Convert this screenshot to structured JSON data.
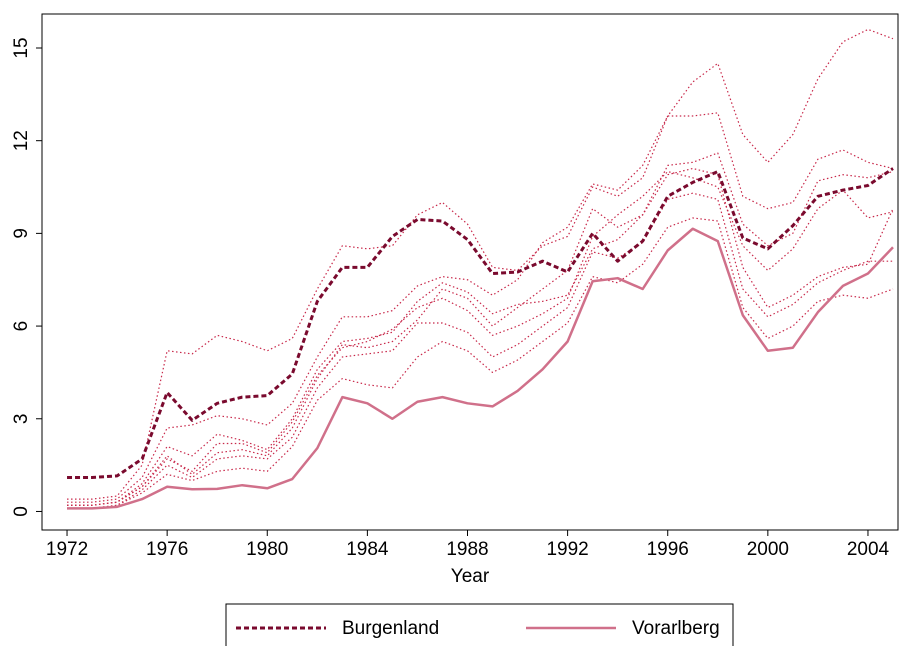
{
  "chart_data": {
    "type": "line",
    "xlabel": "Year",
    "x": [
      1972,
      1973,
      1974,
      1975,
      1976,
      1977,
      1978,
      1979,
      1980,
      1981,
      1982,
      1983,
      1984,
      1985,
      1986,
      1987,
      1988,
      1989,
      1990,
      1991,
      1992,
      1993,
      1994,
      1995,
      1996,
      1997,
      1998,
      1999,
      2000,
      2001,
      2002,
      2003,
      2004,
      2005
    ],
    "xlim": [
      1971,
      2005.2
    ],
    "xticks": [
      1972,
      1976,
      1980,
      1984,
      1988,
      1992,
      1996,
      2000,
      2004
    ],
    "ylim": [
      -0.6,
      16.1
    ],
    "yticks": [
      0,
      3,
      6,
      9,
      12,
      15
    ],
    "series": [
      {
        "color": "#c8284a",
        "dash": "dot",
        "values": [
          0.4,
          0.4,
          0.5,
          1.5,
          5.2,
          5.1,
          5.7,
          5.5,
          5.2,
          5.6,
          7.2,
          8.6,
          8.5,
          8.6,
          9.6,
          10.0,
          9.3,
          7.9,
          7.8,
          8.6,
          8.9,
          10.5,
          10.2,
          10.8,
          12.8,
          13.9,
          14.5,
          12.2,
          11.3,
          12.2,
          14.0,
          15.2,
          15.6,
          15.3
        ]
      },
      {
        "color": "#c8284a",
        "dash": "dot",
        "values": [
          0.3,
          0.3,
          0.4,
          1.1,
          2.7,
          2.8,
          3.1,
          3.0,
          2.8,
          3.5,
          5.0,
          6.3,
          6.3,
          6.5,
          7.3,
          7.6,
          7.5,
          7.0,
          7.5,
          8.7,
          9.2,
          10.6,
          10.4,
          11.2,
          12.8,
          12.8,
          12.9,
          10.2,
          9.8,
          10.0,
          11.4,
          11.7,
          11.3,
          11.1
        ]
      },
      {
        "color": "#c8284a",
        "dash": "dot",
        "values": [
          0.2,
          0.2,
          0.3,
          0.9,
          2.1,
          1.8,
          2.5,
          2.3,
          2.0,
          3.0,
          4.6,
          5.5,
          5.6,
          5.8,
          6.8,
          7.4,
          7.1,
          6.4,
          6.7,
          6.8,
          7.0,
          8.5,
          8.8,
          9.6,
          11.2,
          11.3,
          11.6,
          9.3,
          8.6,
          9.0,
          10.7,
          10.9,
          10.8,
          11.0
        ]
      },
      {
        "color": "#c8284a",
        "dash": "dot",
        "values": [
          0.2,
          0.2,
          0.3,
          0.8,
          1.8,
          1.2,
          1.9,
          2.0,
          1.8,
          2.7,
          4.3,
          5.4,
          5.3,
          5.5,
          6.2,
          7.2,
          6.9,
          6.0,
          6.6,
          7.2,
          7.8,
          9.8,
          9.2,
          9.6,
          10.9,
          11.1,
          10.9,
          7.9,
          6.6,
          7.0,
          7.6,
          7.9,
          8.0,
          9.8
        ]
      },
      {
        "color": "#c8284a",
        "dash": "dot",
        "values": [
          0.2,
          0.2,
          0.3,
          0.8,
          1.7,
          1.3,
          2.2,
          2.2,
          1.9,
          2.9,
          4.4,
          5.3,
          5.5,
          5.9,
          6.6,
          6.9,
          6.5,
          5.7,
          6.0,
          6.4,
          6.9,
          8.9,
          9.6,
          10.2,
          11.0,
          10.8,
          10.5,
          8.6,
          7.8,
          8.5,
          9.8,
          10.4,
          9.5,
          9.7
        ]
      },
      {
        "color": "#c8284a",
        "dash": "dot",
        "values": [
          0.1,
          0.1,
          0.2,
          0.7,
          1.5,
          1.1,
          1.7,
          1.8,
          1.7,
          2.4,
          4.0,
          5.0,
          5.1,
          5.2,
          6.1,
          6.1,
          5.8,
          5.0,
          5.4,
          6.0,
          6.6,
          8.4,
          8.2,
          8.7,
          10.1,
          10.3,
          10.1,
          7.2,
          6.3,
          6.7,
          7.4,
          7.8,
          8.1,
          8.1
        ]
      },
      {
        "color": "#c8284a",
        "dash": "dot",
        "values": [
          0.1,
          0.1,
          0.2,
          0.6,
          1.2,
          1.0,
          1.3,
          1.4,
          1.3,
          2.1,
          3.6,
          4.3,
          4.1,
          4.0,
          5.0,
          5.5,
          5.2,
          4.5,
          4.9,
          5.5,
          6.1,
          7.6,
          7.4,
          8.0,
          9.2,
          9.5,
          9.4,
          6.6,
          5.6,
          6.0,
          6.8,
          7.0,
          6.9,
          7.2
        ]
      },
      {
        "name": "Burgenland",
        "color": "#7a0a2e",
        "dash": "dash",
        "values": [
          1.1,
          1.1,
          1.15,
          1.7,
          3.85,
          2.95,
          3.5,
          3.7,
          3.75,
          4.45,
          6.8,
          7.9,
          7.9,
          8.9,
          9.45,
          9.4,
          8.8,
          7.7,
          7.75,
          8.1,
          7.75,
          9.0,
          8.1,
          8.75,
          10.2,
          10.65,
          11.0,
          8.85,
          8.5,
          9.25,
          10.2,
          10.4,
          10.55,
          11.1
        ]
      },
      {
        "name": "Vorarlberg",
        "color": "#d0708a",
        "dash": "solid",
        "values": [
          0.1,
          0.1,
          0.15,
          0.4,
          0.8,
          0.72,
          0.73,
          0.85,
          0.75,
          1.05,
          2.05,
          3.7,
          3.5,
          3.0,
          3.55,
          3.7,
          3.5,
          3.4,
          3.9,
          4.6,
          5.5,
          7.45,
          7.55,
          7.2,
          8.45,
          9.15,
          8.75,
          6.35,
          5.2,
          5.3,
          6.45,
          7.3,
          7.7,
          8.55
        ]
      }
    ]
  }
}
